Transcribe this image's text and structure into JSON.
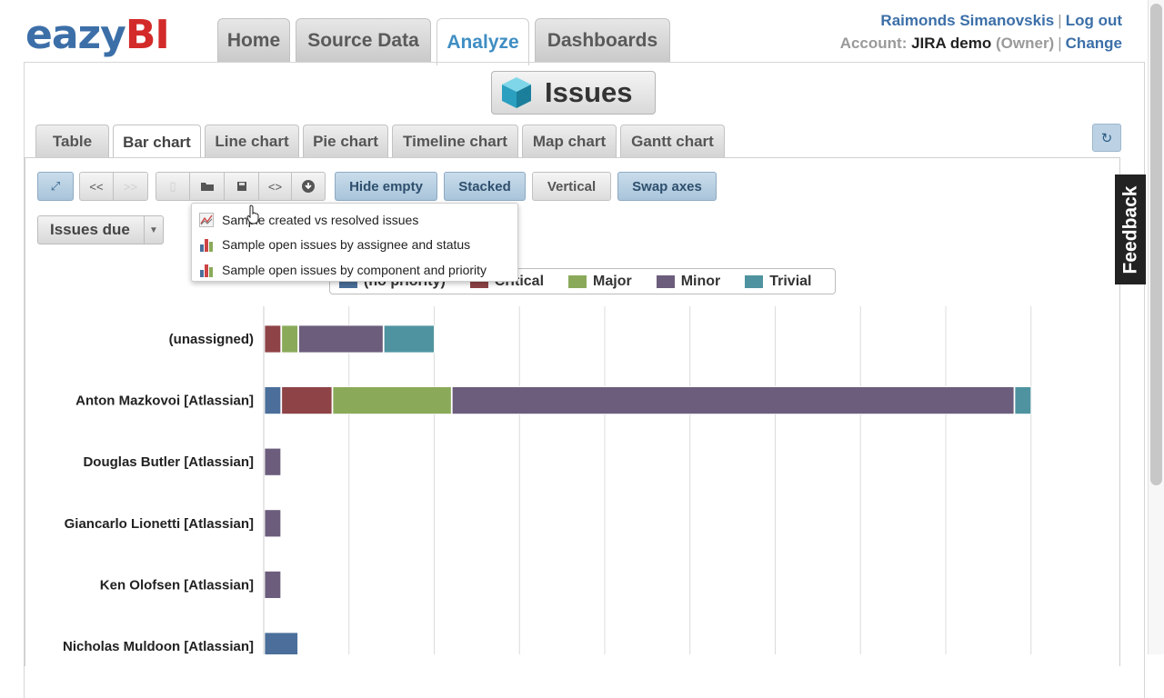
{
  "app": {
    "logo": {
      "part1": "eazy",
      "part2": "BI"
    },
    "nav_tabs": [
      {
        "label": "Home",
        "active": false
      },
      {
        "label": "Source Data",
        "active": false
      },
      {
        "label": "Analyze",
        "active": true
      },
      {
        "label": "Dashboards",
        "active": false
      }
    ],
    "user": {
      "name": "Raimonds Simanovskis",
      "sep": "|",
      "logout": "Log out",
      "account_label": "Account:",
      "account_name": "JIRA demo",
      "role": "(Owner)",
      "change": "Change"
    },
    "cube_title": "Issues"
  },
  "chart_tabs": [
    {
      "label": "Table",
      "active": false
    },
    {
      "label": "Bar chart",
      "active": true
    },
    {
      "label": "Line chart",
      "active": false
    },
    {
      "label": "Pie chart",
      "active": false
    },
    {
      "label": "Timeline chart",
      "active": false
    },
    {
      "label": "Map chart",
      "active": false
    },
    {
      "label": "Gantt chart",
      "active": false
    }
  ],
  "toolbar": {
    "icons": {
      "fullscreen": "expand-icon",
      "undo": "undo-icon",
      "redo": "redo-icon",
      "new": "new-report-icon",
      "open": "open-folder-icon",
      "save": "save-icon",
      "embed": "embed-code-icon",
      "export": "download-icon"
    },
    "toggles": [
      {
        "label": "Hide empty",
        "on": true
      },
      {
        "label": "Stacked",
        "on": true
      },
      {
        "label": "Vertical",
        "on": false
      },
      {
        "label": "Swap axes",
        "on": true
      }
    ],
    "refresh_icon": "refresh-icon"
  },
  "measure_dropdown": {
    "label": "Issues due"
  },
  "report_menu": {
    "items": [
      {
        "label": "Sample created vs resolved issues",
        "icon": "line-chart-icon"
      },
      {
        "label": "Sample open issues by assignee and status",
        "icon": "bar-chart-icon"
      },
      {
        "label": "Sample open issues by component and priority",
        "icon": "bar-chart-icon"
      }
    ]
  },
  "legend": {
    "items": [
      {
        "label": "(no priority)",
        "color": "#4b6f9a"
      },
      {
        "label": "Critical",
        "color": "#8e4347"
      },
      {
        "label": "Major",
        "color": "#8aaa5a"
      },
      {
        "label": "Minor",
        "color": "#6c5d7c"
      },
      {
        "label": "Trivial",
        "color": "#4f93a0"
      }
    ]
  },
  "feedback_label": "Feedback",
  "chart_data": {
    "type": "bar",
    "orientation": "horizontal",
    "stacked": true,
    "grid": true,
    "xlim": [
      0,
      45
    ],
    "categories": [
      "(unassigned)",
      "Anton Mazkovoi [Atlassian]",
      "Douglas Butler [Atlassian]",
      "Giancarlo Lionetti [Atlassian]",
      "Ken Olofsen [Atlassian]",
      "Nicholas Muldoon [Atlassian]"
    ],
    "series": [
      {
        "name": "(no priority)",
        "color": "#4b6f9a",
        "values": [
          0,
          1,
          0,
          0,
          0,
          2
        ]
      },
      {
        "name": "Critical",
        "color": "#8e4347",
        "values": [
          1,
          3,
          0,
          0,
          0,
          0
        ]
      },
      {
        "name": "Major",
        "color": "#8aaa5a",
        "values": [
          1,
          7,
          0,
          0,
          0,
          0
        ]
      },
      {
        "name": "Minor",
        "color": "#6c5d7c",
        "values": [
          5,
          33,
          1,
          1,
          1,
          0
        ]
      },
      {
        "name": "Trivial",
        "color": "#4f93a0",
        "values": [
          3,
          1,
          0,
          0,
          0,
          0
        ]
      }
    ]
  }
}
